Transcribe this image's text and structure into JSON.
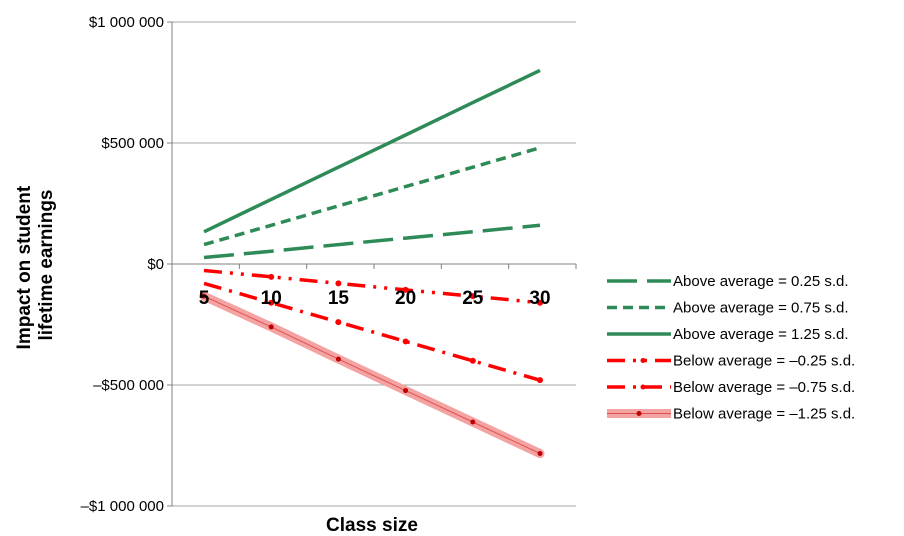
{
  "chart_data": {
    "type": "line",
    "x": [
      5,
      10,
      15,
      20,
      25,
      30
    ],
    "xlabel": "Class size",
    "ylabel": "Impact on student lifetime earnings",
    "ylabel_lines": [
      "Impact on student",
      "lifetime earnings"
    ],
    "ylim": [
      -1000000,
      1000000
    ],
    "yticks": [
      1000000,
      500000,
      0,
      -500000,
      -1000000
    ],
    "ytick_labels": [
      "$1 000 000",
      "$500 000",
      "$0",
      "–$500 000",
      "–$1 000 000"
    ],
    "xtick_labels": [
      "5",
      "10",
      "15",
      "20",
      "25",
      "30"
    ],
    "grid": "horizontal",
    "legend_position": "right",
    "series": [
      {
        "name": "Above average = 0.25 s.d.",
        "color": "#2e8b57",
        "style": "long-dash",
        "values": [
          27000,
          53000,
          80000,
          107000,
          133000,
          160000
        ]
      },
      {
        "name": "Above average = 0.75 s.d.",
        "color": "#2e8b57",
        "style": "short-dash",
        "values": [
          80000,
          160000,
          240000,
          320000,
          400000,
          480000
        ]
      },
      {
        "name": "Above average = 1.25 s.d.",
        "color": "#2e8b57",
        "style": "solid",
        "values": [
          133000,
          267000,
          400000,
          533000,
          667000,
          800000
        ]
      },
      {
        "name": "Below average = –0.25 s.d.",
        "color": "#ff0000",
        "style": "dash-dot-dot",
        "values": [
          -27000,
          -53000,
          -80000,
          -107000,
          -133000,
          -160000
        ]
      },
      {
        "name": "Below average = –0.75 s.d.",
        "color": "#ff0000",
        "style": "dash-dot",
        "values": [
          -80000,
          -160000,
          -240000,
          -320000,
          -400000,
          -480000
        ]
      },
      {
        "name": "Below average = –1.25 s.d.",
        "color": "#ff0000",
        "style": "band",
        "values": [
          -133000,
          -260000,
          -393000,
          -523000,
          -653000,
          -783000
        ]
      }
    ]
  }
}
